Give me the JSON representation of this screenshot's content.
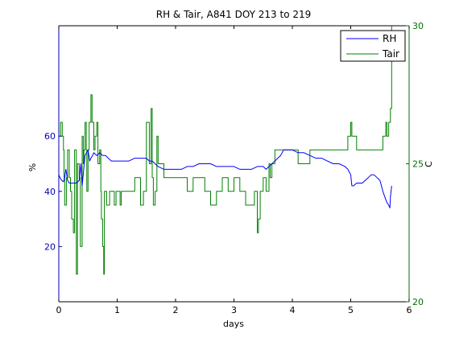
{
  "chart_data": {
    "type": "line",
    "title": "RH & Tair, A841 DOY 213 to 219",
    "xlabel": "days",
    "ylabel_left": "%",
    "ylabel_right": "C",
    "xlim": [
      0,
      6
    ],
    "ylim_left": [
      0,
      100
    ],
    "ylim_right": [
      20,
      30
    ],
    "x_ticks": [
      0,
      1,
      2,
      3,
      4,
      5,
      6
    ],
    "y_left_ticks": [
      20,
      40,
      60
    ],
    "y_right_ticks": [
      20,
      25,
      30
    ],
    "grid": false,
    "legend_placement": "top-right",
    "colors": {
      "left_axis": "#0000b0",
      "right_axis": "#007000",
      "rh_line": "#0000ff",
      "tair_line": "#008000"
    },
    "series": [
      {
        "name": "RH",
        "axis": "left",
        "color": "#0000ff",
        "x": [
          0.0,
          0.02,
          0.05,
          0.08,
          0.1,
          0.12,
          0.13,
          0.15,
          0.18,
          0.2,
          0.25,
          0.3,
          0.35,
          0.38,
          0.4,
          0.45,
          0.5,
          0.53,
          0.55,
          0.58,
          0.6,
          0.65,
          0.7,
          0.75,
          0.8,
          0.85,
          0.9,
          0.95,
          1.0,
          1.1,
          1.2,
          1.3,
          1.4,
          1.5,
          1.55,
          1.6,
          1.65,
          1.7,
          1.8,
          1.9,
          2.0,
          2.1,
          2.2,
          2.3,
          2.4,
          2.5,
          2.6,
          2.7,
          2.8,
          2.9,
          3.0,
          3.1,
          3.2,
          3.3,
          3.4,
          3.5,
          3.55,
          3.6,
          3.65,
          3.7,
          3.75,
          3.8,
          3.85,
          3.9,
          4.0,
          4.1,
          4.2,
          4.3,
          4.4,
          4.5,
          4.6,
          4.7,
          4.8,
          4.9,
          4.95,
          5.0,
          5.02,
          5.05,
          5.1,
          5.2,
          5.25,
          5.3,
          5.35,
          5.4,
          5.45,
          5.5,
          5.55,
          5.6,
          5.62,
          5.65,
          5.67,
          5.68,
          5.7
        ],
        "values": [
          46,
          45,
          44,
          43.5,
          45,
          48,
          47,
          44,
          43,
          43,
          43,
          43,
          44,
          50,
          42,
          53,
          55,
          51,
          52,
          53,
          54,
          53,
          54,
          53,
          53,
          52,
          51,
          51,
          51,
          51,
          51,
          52,
          52,
          52,
          51,
          51,
          50,
          49,
          48,
          48,
          48,
          48,
          49,
          49,
          50,
          50,
          50,
          49,
          49,
          49,
          49,
          48,
          48,
          48,
          49,
          49,
          48,
          49,
          50,
          51,
          52,
          53,
          55,
          55,
          55,
          54,
          54,
          53,
          52,
          52,
          51,
          50,
          50,
          49,
          48,
          46,
          42,
          42,
          43,
          43,
          44,
          45,
          46,
          46,
          45,
          44,
          40,
          37,
          36,
          35,
          34,
          38,
          42
        ]
      },
      {
        "name": "Tair",
        "axis": "right",
        "color": "#008000",
        "x": [
          0.0,
          0.02,
          0.03,
          0.05,
          0.06,
          0.08,
          0.09,
          0.1,
          0.12,
          0.13,
          0.15,
          0.17,
          0.18,
          0.2,
          0.22,
          0.25,
          0.27,
          0.3,
          0.32,
          0.35,
          0.37,
          0.4,
          0.42,
          0.43,
          0.45,
          0.47,
          0.48,
          0.5,
          0.52,
          0.55,
          0.57,
          0.6,
          0.62,
          0.65,
          0.67,
          0.7,
          0.72,
          0.73,
          0.75,
          0.77,
          0.78,
          0.8,
          0.82,
          0.85,
          0.87,
          0.88,
          0.9,
          0.92,
          0.93,
          0.95,
          0.97,
          0.98,
          1.0,
          1.02,
          1.05,
          1.07,
          1.1,
          1.2,
          1.3,
          1.4,
          1.45,
          1.5,
          1.55,
          1.58,
          1.6,
          1.62,
          1.65,
          1.68,
          1.7,
          1.8,
          2.0,
          2.2,
          2.25,
          2.3,
          2.5,
          2.6,
          2.7,
          2.8,
          2.9,
          3.0,
          3.1,
          3.2,
          3.3,
          3.35,
          3.4,
          3.42,
          3.45,
          3.5,
          3.55,
          3.6,
          3.62,
          3.65,
          3.7,
          3.8,
          3.9,
          4.0,
          4.1,
          4.2,
          4.3,
          4.4,
          4.5,
          4.6,
          4.7,
          4.8,
          4.9,
          4.95,
          5.0,
          5.02,
          5.05,
          5.1,
          5.2,
          5.3,
          5.4,
          5.5,
          5.55,
          5.6,
          5.62,
          5.65,
          5.68,
          5.7
        ],
        "values": [
          26,
          26,
          26.5,
          26.5,
          26,
          25.5,
          24.5,
          23.5,
          23.5,
          24.5,
          25.5,
          25.5,
          24.5,
          24,
          23,
          22.5,
          25.5,
          21,
          25,
          24.5,
          22,
          26,
          25,
          25.5,
          26.5,
          25.5,
          24,
          25.5,
          26.5,
          27.5,
          26.5,
          25.5,
          26,
          26.5,
          25,
          25.5,
          24,
          23,
          22,
          21,
          24,
          24,
          23.5,
          23.5,
          24,
          24,
          24,
          24,
          24,
          23.5,
          23.5,
          24,
          24,
          24,
          23.5,
          24,
          24,
          24,
          24.5,
          23.5,
          24,
          26.5,
          25,
          27,
          24.5,
          23.5,
          24,
          26,
          25,
          24.5,
          24.5,
          24,
          24,
          24.5,
          24,
          23.5,
          24,
          24.5,
          24,
          24.5,
          24,
          23.5,
          23.5,
          24,
          22.5,
          23,
          24,
          24.5,
          24,
          25,
          24.5,
          25,
          25.5,
          25.5,
          25.5,
          25.5,
          25,
          25,
          25.5,
          25.5,
          25.5,
          25.5,
          25.5,
          25.5,
          25.5,
          26,
          26.5,
          26,
          26,
          25.5,
          25.5,
          25.5,
          25.5,
          25.5,
          26,
          26.5,
          26,
          26.5,
          27,
          30
        ]
      }
    ]
  }
}
